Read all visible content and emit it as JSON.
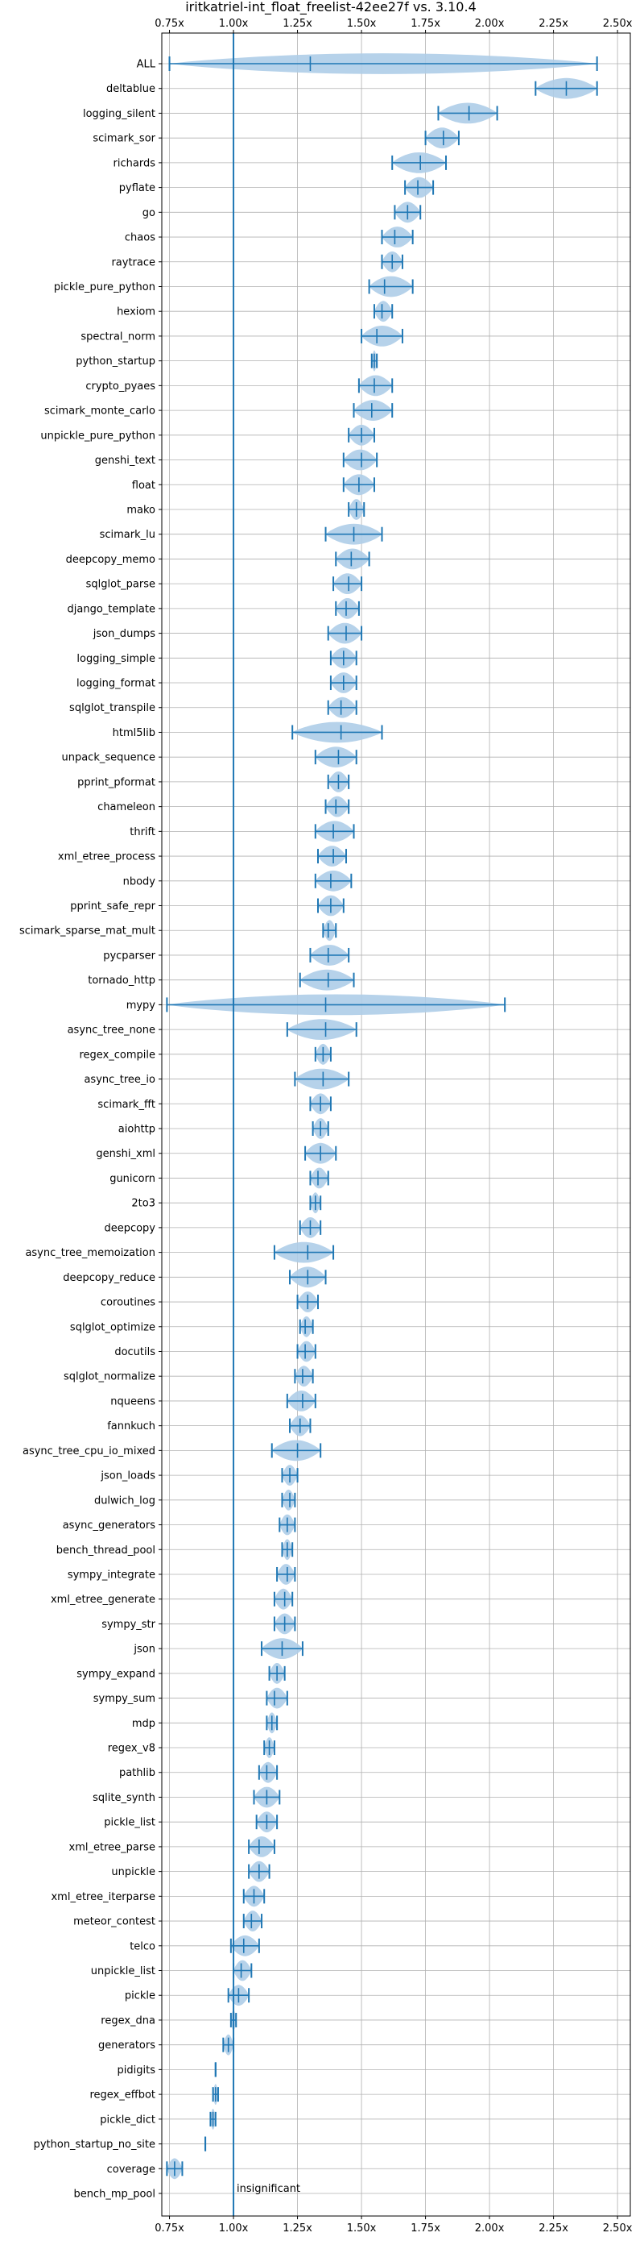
{
  "chart_data": {
    "type": "violin",
    "title": "iritkatriel-int_float_freelist-42ee27f vs. 3.10.4",
    "xticks": [
      0.75,
      1.0,
      1.25,
      1.5,
      1.75,
      2.0,
      2.25,
      2.5
    ],
    "xtick_labels": [
      "0.75x",
      "1.00x",
      "1.25x",
      "1.50x",
      "1.75x",
      "2.00x",
      "2.25x",
      "2.50x"
    ],
    "xlim": [
      0.72,
      2.55
    ],
    "grid": true,
    "reference_line": 1.0,
    "annotation": "insignificant",
    "colors": {
      "violin": "#aecde8",
      "lines": "#1f77b4",
      "grid": "#b0b0b0"
    },
    "categories": [
      {
        "name": "ALL",
        "median": 1.3,
        "min": 0.75,
        "max": 2.42,
        "width": 1.0
      },
      {
        "name": "deltablue",
        "median": 2.3,
        "min": 2.18,
        "max": 2.42,
        "width": 1.0
      },
      {
        "name": "logging_silent",
        "median": 1.92,
        "min": 1.8,
        "max": 2.03,
        "width": 1.0
      },
      {
        "name": "scimark_sor",
        "median": 1.82,
        "min": 1.75,
        "max": 1.88,
        "width": 1.0
      },
      {
        "name": "richards",
        "median": 1.73,
        "min": 1.62,
        "max": 1.83,
        "width": 1.0
      },
      {
        "name": "pyflate",
        "median": 1.72,
        "min": 1.67,
        "max": 1.78,
        "width": 1.0
      },
      {
        "name": "go",
        "median": 1.68,
        "min": 1.63,
        "max": 1.73,
        "width": 1.0
      },
      {
        "name": "chaos",
        "median": 1.63,
        "min": 1.58,
        "max": 1.7,
        "width": 1.0
      },
      {
        "name": "raytrace",
        "median": 1.62,
        "min": 1.58,
        "max": 1.66,
        "width": 1.0
      },
      {
        "name": "pickle_pure_python",
        "median": 1.59,
        "min": 1.53,
        "max": 1.7,
        "width": 1.0
      },
      {
        "name": "hexiom",
        "median": 1.58,
        "min": 1.55,
        "max": 1.62,
        "width": 1.0
      },
      {
        "name": "spectral_norm",
        "median": 1.56,
        "min": 1.5,
        "max": 1.66,
        "width": 1.0
      },
      {
        "name": "python_startup",
        "median": 1.55,
        "min": 1.54,
        "max": 1.56,
        "width": 1.0
      },
      {
        "name": "crypto_pyaes",
        "median": 1.55,
        "min": 1.49,
        "max": 1.62,
        "width": 1.0
      },
      {
        "name": "scimark_monte_carlo",
        "median": 1.54,
        "min": 1.47,
        "max": 1.62,
        "width": 1.0
      },
      {
        "name": "unpickle_pure_python",
        "median": 1.5,
        "min": 1.45,
        "max": 1.55,
        "width": 1.0
      },
      {
        "name": "genshi_text",
        "median": 1.5,
        "min": 1.43,
        "max": 1.56,
        "width": 1.0
      },
      {
        "name": "float",
        "median": 1.49,
        "min": 1.43,
        "max": 1.55,
        "width": 1.0
      },
      {
        "name": "mako",
        "median": 1.48,
        "min": 1.45,
        "max": 1.51,
        "width": 1.0
      },
      {
        "name": "scimark_lu",
        "median": 1.47,
        "min": 1.36,
        "max": 1.58,
        "width": 1.0
      },
      {
        "name": "deepcopy_memo",
        "median": 1.46,
        "min": 1.4,
        "max": 1.53,
        "width": 1.0
      },
      {
        "name": "sqlglot_parse",
        "median": 1.45,
        "min": 1.39,
        "max": 1.5,
        "width": 1.0
      },
      {
        "name": "django_template",
        "median": 1.44,
        "min": 1.4,
        "max": 1.49,
        "width": 1.0
      },
      {
        "name": "json_dumps",
        "median": 1.44,
        "min": 1.37,
        "max": 1.5,
        "width": 1.0
      },
      {
        "name": "logging_simple",
        "median": 1.43,
        "min": 1.38,
        "max": 1.48,
        "width": 1.0
      },
      {
        "name": "logging_format",
        "median": 1.43,
        "min": 1.38,
        "max": 1.48,
        "width": 1.0
      },
      {
        "name": "sqlglot_transpile",
        "median": 1.42,
        "min": 1.37,
        "max": 1.48,
        "width": 1.0
      },
      {
        "name": "html5lib",
        "median": 1.42,
        "min": 1.23,
        "max": 1.58,
        "width": 1.0
      },
      {
        "name": "unpack_sequence",
        "median": 1.41,
        "min": 1.32,
        "max": 1.48,
        "width": 1.0
      },
      {
        "name": "pprint_pformat",
        "median": 1.41,
        "min": 1.37,
        "max": 1.45,
        "width": 1.0
      },
      {
        "name": "chameleon",
        "median": 1.4,
        "min": 1.36,
        "max": 1.45,
        "width": 1.0
      },
      {
        "name": "thrift",
        "median": 1.39,
        "min": 1.32,
        "max": 1.47,
        "width": 1.0
      },
      {
        "name": "xml_etree_process",
        "median": 1.39,
        "min": 1.33,
        "max": 1.44,
        "width": 1.0
      },
      {
        "name": "nbody",
        "median": 1.38,
        "min": 1.32,
        "max": 1.46,
        "width": 1.0
      },
      {
        "name": "pprint_safe_repr",
        "median": 1.38,
        "min": 1.33,
        "max": 1.43,
        "width": 1.0
      },
      {
        "name": "scimark_sparse_mat_mult",
        "median": 1.37,
        "min": 1.35,
        "max": 1.4,
        "width": 1.0
      },
      {
        "name": "pycparser",
        "median": 1.37,
        "min": 1.3,
        "max": 1.45,
        "width": 1.0
      },
      {
        "name": "tornado_http",
        "median": 1.37,
        "min": 1.26,
        "max": 1.47,
        "width": 1.0
      },
      {
        "name": "mypy",
        "median": 1.36,
        "min": 0.74,
        "max": 2.06,
        "width": 1.0
      },
      {
        "name": "async_tree_none",
        "median": 1.36,
        "min": 1.21,
        "max": 1.48,
        "width": 1.0
      },
      {
        "name": "regex_compile",
        "median": 1.35,
        "min": 1.32,
        "max": 1.38,
        "width": 1.0
      },
      {
        "name": "async_tree_io",
        "median": 1.35,
        "min": 1.24,
        "max": 1.45,
        "width": 1.0
      },
      {
        "name": "scimark_fft",
        "median": 1.34,
        "min": 1.3,
        "max": 1.38,
        "width": 1.0
      },
      {
        "name": "aiohttp",
        "median": 1.34,
        "min": 1.31,
        "max": 1.37,
        "width": 1.0
      },
      {
        "name": "genshi_xml",
        "median": 1.34,
        "min": 1.28,
        "max": 1.4,
        "width": 1.0
      },
      {
        "name": "gunicorn",
        "median": 1.33,
        "min": 1.3,
        "max": 1.37,
        "width": 1.0
      },
      {
        "name": "2to3",
        "median": 1.32,
        "min": 1.3,
        "max": 1.34,
        "width": 1.0
      },
      {
        "name": "deepcopy",
        "median": 1.3,
        "min": 1.26,
        "max": 1.34,
        "width": 1.0
      },
      {
        "name": "async_tree_memoization",
        "median": 1.29,
        "min": 1.16,
        "max": 1.39,
        "width": 1.0
      },
      {
        "name": "deepcopy_reduce",
        "median": 1.29,
        "min": 1.22,
        "max": 1.36,
        "width": 1.0
      },
      {
        "name": "coroutines",
        "median": 1.29,
        "min": 1.25,
        "max": 1.33,
        "width": 1.0
      },
      {
        "name": "sqlglot_optimize",
        "median": 1.28,
        "min": 1.26,
        "max": 1.31,
        "width": 1.0
      },
      {
        "name": "docutils",
        "median": 1.28,
        "min": 1.25,
        "max": 1.32,
        "width": 1.0
      },
      {
        "name": "sqlglot_normalize",
        "median": 1.27,
        "min": 1.24,
        "max": 1.31,
        "width": 1.0
      },
      {
        "name": "nqueens",
        "median": 1.27,
        "min": 1.21,
        "max": 1.32,
        "width": 1.0
      },
      {
        "name": "fannkuch",
        "median": 1.26,
        "min": 1.22,
        "max": 1.3,
        "width": 1.0
      },
      {
        "name": "async_tree_cpu_io_mixed",
        "median": 1.25,
        "min": 1.15,
        "max": 1.34,
        "width": 1.0
      },
      {
        "name": "json_loads",
        "median": 1.22,
        "min": 1.19,
        "max": 1.25,
        "width": 1.0
      },
      {
        "name": "dulwich_log",
        "median": 1.22,
        "min": 1.19,
        "max": 1.24,
        "width": 1.0
      },
      {
        "name": "async_generators",
        "median": 1.21,
        "min": 1.18,
        "max": 1.24,
        "width": 1.0
      },
      {
        "name": "bench_thread_pool",
        "median": 1.21,
        "min": 1.19,
        "max": 1.23,
        "width": 1.0
      },
      {
        "name": "sympy_integrate",
        "median": 1.21,
        "min": 1.17,
        "max": 1.24,
        "width": 1.0
      },
      {
        "name": "xml_etree_generate",
        "median": 1.2,
        "min": 1.16,
        "max": 1.23,
        "width": 1.0
      },
      {
        "name": "sympy_str",
        "median": 1.2,
        "min": 1.16,
        "max": 1.24,
        "width": 1.0
      },
      {
        "name": "json",
        "median": 1.19,
        "min": 1.11,
        "max": 1.27,
        "width": 1.0
      },
      {
        "name": "sympy_expand",
        "median": 1.17,
        "min": 1.14,
        "max": 1.2,
        "width": 1.0
      },
      {
        "name": "sympy_sum",
        "median": 1.16,
        "min": 1.13,
        "max": 1.21,
        "width": 1.0
      },
      {
        "name": "mdp",
        "median": 1.15,
        "min": 1.13,
        "max": 1.17,
        "width": 1.0
      },
      {
        "name": "regex_v8",
        "median": 1.14,
        "min": 1.12,
        "max": 1.16,
        "width": 1.0
      },
      {
        "name": "pathlib",
        "median": 1.13,
        "min": 1.1,
        "max": 1.17,
        "width": 1.0
      },
      {
        "name": "sqlite_synth",
        "median": 1.13,
        "min": 1.08,
        "max": 1.18,
        "width": 1.0
      },
      {
        "name": "pickle_list",
        "median": 1.13,
        "min": 1.09,
        "max": 1.17,
        "width": 1.0
      },
      {
        "name": "xml_etree_parse",
        "median": 1.1,
        "min": 1.06,
        "max": 1.16,
        "width": 1.0
      },
      {
        "name": "unpickle",
        "median": 1.1,
        "min": 1.06,
        "max": 1.14,
        "width": 1.0
      },
      {
        "name": "xml_etree_iterparse",
        "median": 1.08,
        "min": 1.04,
        "max": 1.12,
        "width": 1.0
      },
      {
        "name": "meteor_contest",
        "median": 1.07,
        "min": 1.04,
        "max": 1.11,
        "width": 1.0
      },
      {
        "name": "telco",
        "median": 1.04,
        "min": 0.99,
        "max": 1.1,
        "width": 1.0
      },
      {
        "name": "unpickle_list",
        "median": 1.03,
        "min": 1.0,
        "max": 1.07,
        "width": 1.0
      },
      {
        "name": "pickle",
        "median": 1.02,
        "min": 0.98,
        "max": 1.06,
        "width": 1.0
      },
      {
        "name": "regex_dna",
        "median": 1.0,
        "min": 0.99,
        "max": 1.01,
        "width": 1.0
      },
      {
        "name": "generators",
        "median": 0.98,
        "min": 0.96,
        "max": 1.0,
        "width": 1.0
      },
      {
        "name": "pidigits",
        "median": 0.93,
        "min": 0.93,
        "max": 0.93,
        "width": 1.0
      },
      {
        "name": "regex_effbot",
        "median": 0.93,
        "min": 0.92,
        "max": 0.94,
        "width": 1.0
      },
      {
        "name": "pickle_dict",
        "median": 0.92,
        "min": 0.91,
        "max": 0.93,
        "width": 1.0
      },
      {
        "name": "python_startup_no_site",
        "median": 0.89,
        "min": 0.89,
        "max": 0.89,
        "width": 1.0
      },
      {
        "name": "coverage",
        "median": 0.77,
        "min": 0.74,
        "max": 0.8,
        "width": 1.0
      },
      {
        "name": "bench_mp_pool",
        "median": null,
        "min": null,
        "max": null,
        "width": 0
      }
    ]
  }
}
